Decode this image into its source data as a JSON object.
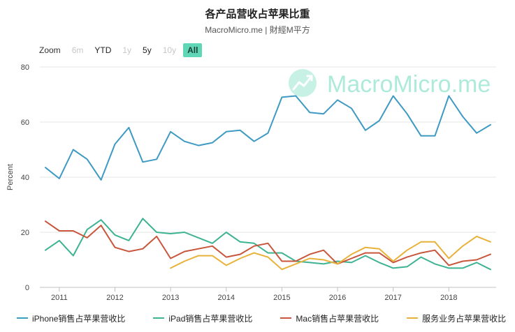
{
  "title": "各产品营收占苹果比重",
  "subtitle": "MacroMicro.me | 財經M平方",
  "zoom": {
    "label": "Zoom",
    "buttons": [
      {
        "label": "6m",
        "state": "dim"
      },
      {
        "label": "YTD",
        "state": "on"
      },
      {
        "label": "1y",
        "state": "dim"
      },
      {
        "label": "5y",
        "state": "on"
      },
      {
        "label": "10y",
        "state": "dim"
      },
      {
        "label": "All",
        "state": "active"
      }
    ]
  },
  "watermark": {
    "text": "MacroMicro.me",
    "icon": "chart-trend-icon",
    "color": "#5fd6b5"
  },
  "chart_data": {
    "type": "line",
    "ylabel": "Percent",
    "ylim": [
      0,
      80
    ],
    "yticks": [
      0,
      20,
      40,
      60,
      80
    ],
    "xlim": [
      2010.65,
      2018.85
    ],
    "xticks": [
      2011,
      2012,
      2013,
      2014,
      2015,
      2016,
      2017,
      2018
    ],
    "grid": "horizontal",
    "legend_position": "bottom",
    "series": [
      {
        "name": "iPhone销售占苹果营收比",
        "color": "#3e9ac3",
        "x": [
          2010.75,
          2011.0,
          2011.25,
          2011.5,
          2011.75,
          2012.0,
          2012.25,
          2012.5,
          2012.75,
          2013.0,
          2013.25,
          2013.5,
          2013.75,
          2014.0,
          2014.25,
          2014.5,
          2014.75,
          2015.0,
          2015.25,
          2015.5,
          2015.75,
          2016.0,
          2016.25,
          2016.5,
          2016.75,
          2017.0,
          2017.25,
          2017.5,
          2017.75,
          2018.0,
          2018.25,
          2018.5,
          2018.75
        ],
        "y": [
          43.5,
          39.5,
          50,
          46.5,
          39,
          52,
          58,
          45.5,
          46.5,
          56.5,
          53,
          51.5,
          52.5,
          56.5,
          57,
          53,
          56,
          69,
          69.5,
          63.5,
          63,
          68,
          65,
          57,
          60.5,
          69.5,
          63,
          55,
          55,
          69.5,
          62,
          56,
          59
        ]
      },
      {
        "name": "iPad销售占苹果营收比",
        "color": "#3db392",
        "x": [
          2010.75,
          2011.0,
          2011.25,
          2011.5,
          2011.75,
          2012.0,
          2012.25,
          2012.5,
          2012.75,
          2013.0,
          2013.25,
          2013.5,
          2013.75,
          2014.0,
          2014.25,
          2014.5,
          2014.75,
          2015.0,
          2015.25,
          2015.5,
          2015.75,
          2016.0,
          2016.25,
          2016.5,
          2016.75,
          2017.0,
          2017.25,
          2017.5,
          2017.75,
          2018.0,
          2018.25,
          2018.5,
          2018.75
        ],
        "y": [
          13.5,
          17,
          11.5,
          21,
          24.5,
          19,
          17,
          25,
          20,
          19.5,
          20,
          18,
          16,
          20,
          16.5,
          16,
          12.5,
          12.5,
          9.5,
          9,
          8.5,
          9.5,
          9,
          11.5,
          9,
          7,
          7.5,
          11,
          8.5,
          7,
          7,
          9,
          6.5
        ]
      },
      {
        "name": "Mac销售占苹果营收比",
        "color": "#c8553c",
        "x": [
          2010.75,
          2011.0,
          2011.25,
          2011.5,
          2011.75,
          2012.0,
          2012.25,
          2012.5,
          2012.75,
          2013.0,
          2013.25,
          2013.5,
          2013.75,
          2014.0,
          2014.25,
          2014.5,
          2014.75,
          2015.0,
          2015.25,
          2015.5,
          2015.75,
          2016.0,
          2016.25,
          2016.5,
          2016.75,
          2017.0,
          2017.25,
          2017.5,
          2017.75,
          2018.0,
          2018.25,
          2018.5,
          2018.75
        ],
        "y": [
          24,
          20.5,
          20.5,
          18,
          22.5,
          14.5,
          13,
          14,
          18.5,
          10.5,
          13,
          14,
          15,
          11,
          12,
          15,
          16,
          9.5,
          9.5,
          12,
          13.5,
          8.5,
          10.5,
          12.5,
          12.5,
          9,
          11,
          12.5,
          13.5,
          8,
          9.5,
          10,
          12
        ]
      },
      {
        "name": "服务业务占苹果营收比",
        "color": "#e8b23a",
        "x": [
          2013.0,
          2013.25,
          2013.5,
          2013.75,
          2014.0,
          2014.25,
          2014.5,
          2014.75,
          2015.0,
          2015.25,
          2015.5,
          2015.75,
          2016.0,
          2016.25,
          2016.5,
          2016.75,
          2017.0,
          2017.25,
          2017.5,
          2017.75,
          2018.0,
          2018.25,
          2018.5,
          2018.75
        ],
        "y": [
          7,
          9.5,
          11.5,
          11.5,
          8,
          10.5,
          12.5,
          11,
          6.5,
          8.5,
          10.5,
          10,
          8.5,
          12,
          14.5,
          14,
          9.5,
          13.5,
          16.5,
          16.5,
          10.5,
          15,
          18.5,
          16.5
        ]
      }
    ]
  }
}
